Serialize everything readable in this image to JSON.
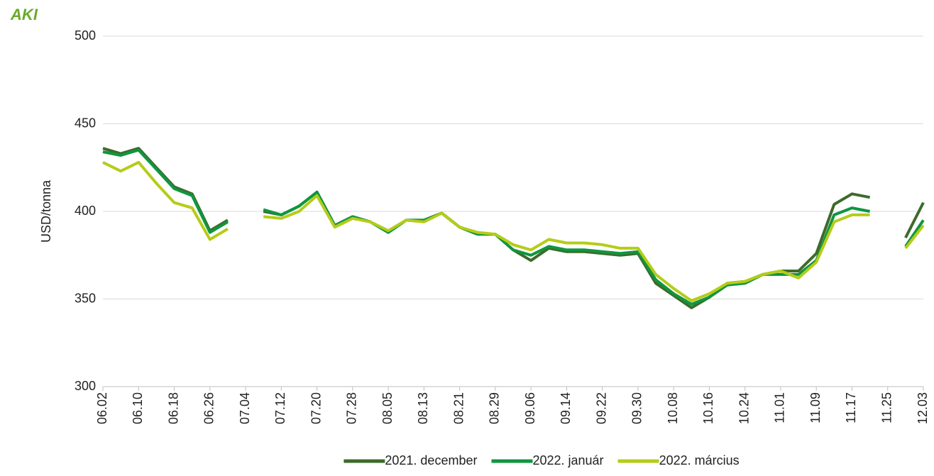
{
  "logo": "AKI",
  "chart_data": {
    "type": "line",
    "y_label": "USD/tonna",
    "categories": [
      "06.02",
      null,
      "06.10",
      null,
      "06.18",
      null,
      "06.26",
      null,
      "07.04",
      null,
      "07.12",
      null,
      "07.20",
      null,
      "07.28",
      null,
      "08.05",
      null,
      "08.13",
      null,
      "08.21",
      null,
      "08.29",
      null,
      "09.06",
      null,
      "09.14",
      null,
      "09.22",
      null,
      "09.30",
      null,
      "10.08",
      null,
      "10.16",
      null,
      "10.24",
      null,
      "11.01",
      null,
      "11.09",
      null,
      "11.17",
      null,
      "11.25",
      null,
      "12.03"
    ],
    "series": [
      {
        "name": "2021. december",
        "color": "#3d6b2a",
        "values": [
          436,
          433,
          436,
          425,
          414,
          410,
          389,
          395,
          null,
          400,
          398,
          403,
          411,
          392,
          397,
          394,
          388,
          395,
          395,
          399,
          391,
          387,
          387,
          378,
          372,
          379,
          377,
          377,
          376,
          375,
          376,
          359,
          352,
          345,
          351,
          359,
          360,
          364,
          366,
          366,
          376,
          404,
          410,
          408,
          null,
          385,
          405
        ]
      },
      {
        "name": "2022. január",
        "color": "#0f9640",
        "values": [
          434,
          432,
          435,
          424,
          413,
          409,
          388,
          394,
          null,
          401,
          398,
          403,
          411,
          392,
          397,
          394,
          388,
          395,
          395,
          399,
          391,
          387,
          387,
          378,
          375,
          380,
          378,
          378,
          377,
          376,
          377,
          361,
          353,
          347,
          351,
          358,
          359,
          364,
          364,
          364,
          372,
          398,
          402,
          400,
          null,
          380,
          395
        ]
      },
      {
        "name": "2022. március",
        "color": "#b5cc18",
        "values": [
          428,
          423,
          428,
          416,
          405,
          402,
          384,
          390,
          null,
          397,
          396,
          400,
          409,
          391,
          396,
          394,
          389,
          395,
          394,
          399,
          391,
          388,
          387,
          381,
          378,
          384,
          382,
          382,
          381,
          379,
          379,
          364,
          356,
          349,
          353,
          359,
          360,
          364,
          366,
          362,
          371,
          394,
          398,
          398,
          null,
          379,
          392
        ]
      }
    ],
    "ylim": [
      300,
      500
    ],
    "yticks": [
      300,
      350,
      400,
      450,
      500
    ],
    "grid": true,
    "legend": "bottom"
  }
}
